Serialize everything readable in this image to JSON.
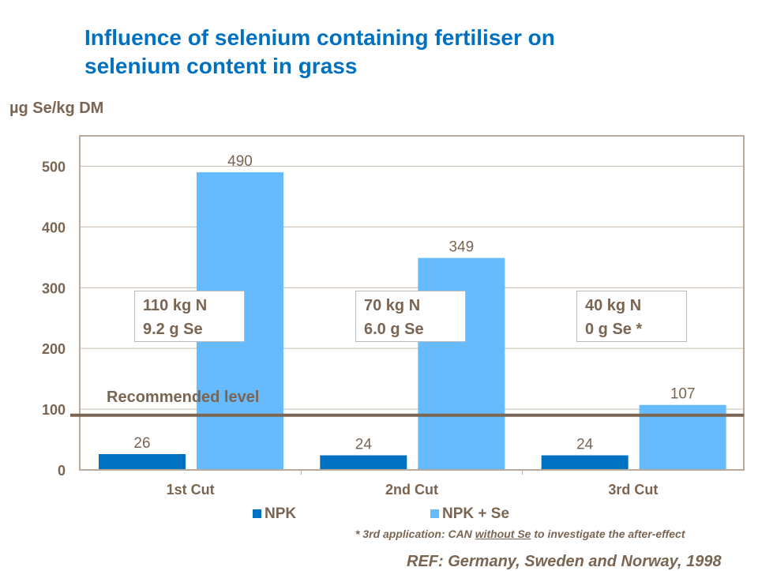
{
  "title_line1": "Influence of selenium containing fertiliser on",
  "title_line2": "selenium content in grass",
  "chart_data": {
    "type": "bar",
    "ylabel": "µg Se/kg DM",
    "ylim": [
      0,
      550
    ],
    "yticks": [
      0,
      100,
      200,
      300,
      400,
      500
    ],
    "categories": [
      "1st Cut",
      "2nd Cut",
      "3rd Cut"
    ],
    "series": [
      {
        "name": "NPK",
        "values": [
          26,
          24,
          24
        ],
        "color": "#0070c0"
      },
      {
        "name": "NPK + Se",
        "values": [
          490,
          349,
          107
        ],
        "color": "#66bbff"
      }
    ],
    "reference_line": {
      "label": "Recommended level",
      "value": 90,
      "color": "#7a6552"
    },
    "grid": true,
    "legend": "bottom",
    "annotations": [
      {
        "line1": "110 kg N",
        "line2": "9.2 g Se"
      },
      {
        "line1": "70 kg N",
        "line2": "6.0 g Se"
      },
      {
        "line1": "40 kg N",
        "line2": "0 g Se *"
      }
    ]
  },
  "footnote": {
    "pre": "* 3rd application:  CAN ",
    "underlined": "without Se",
    "post": " to investigate the after-effect"
  },
  "reference": "REF: Germany, Sweden and Norway, 1998"
}
